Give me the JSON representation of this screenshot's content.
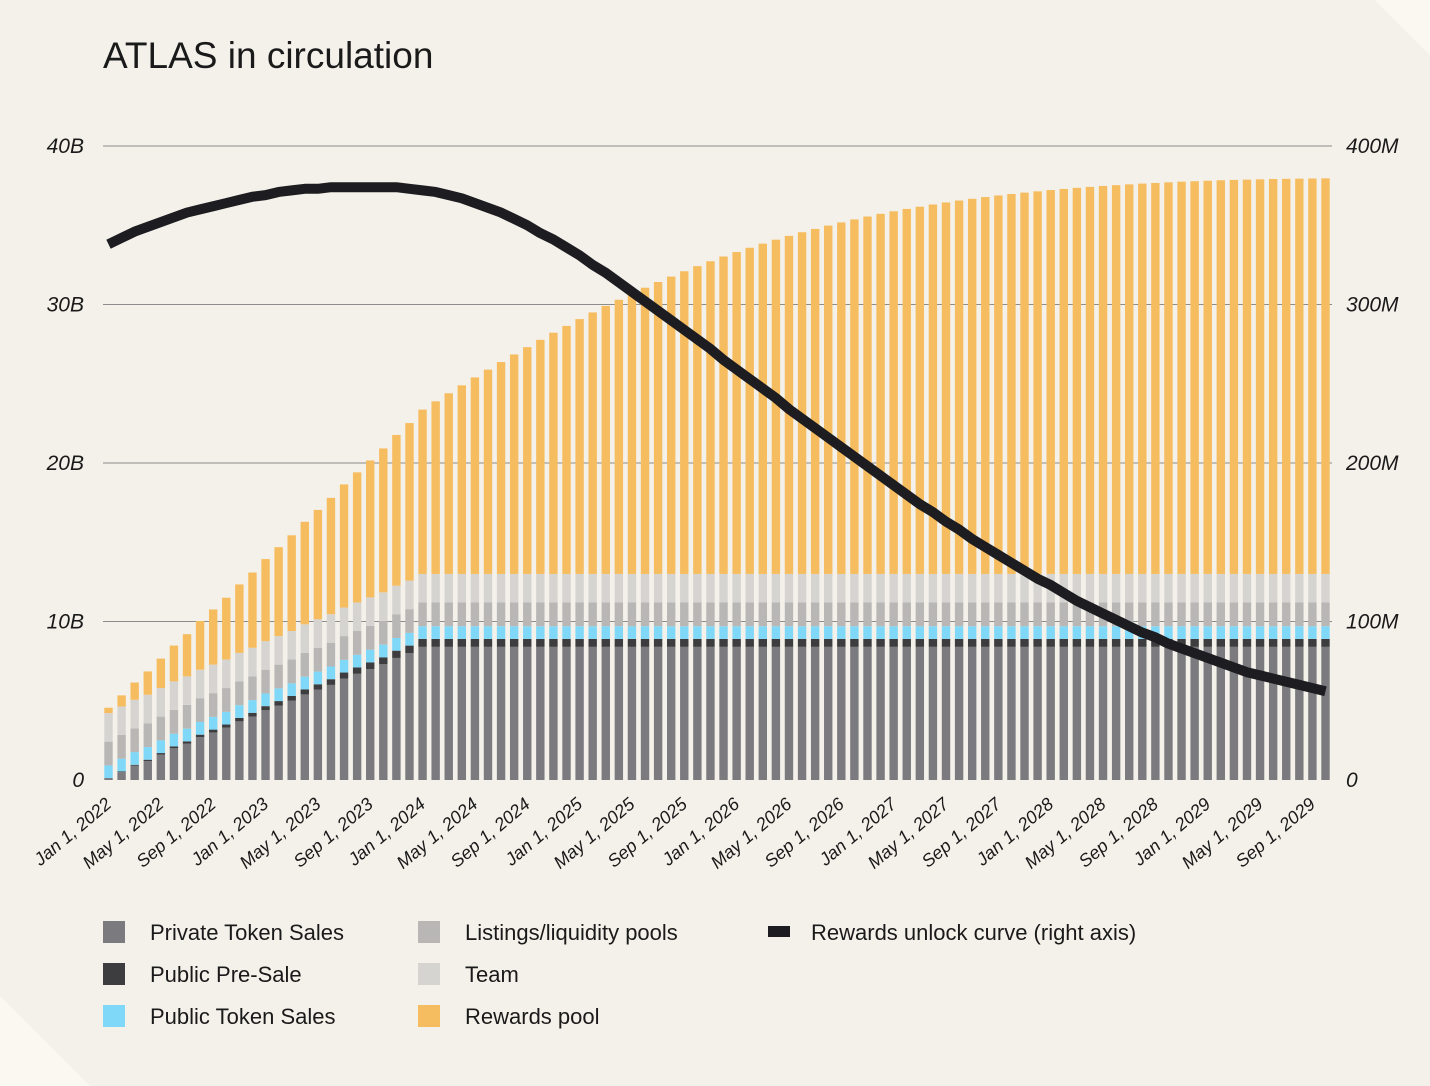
{
  "chart_data": {
    "type": "bar",
    "stacked": true,
    "title": "ATLAS in circulation",
    "left_axis": {
      "ticks": [
        "0",
        "10B",
        "20B",
        "30B",
        "40B"
      ],
      "range": [
        0,
        40000000000
      ]
    },
    "right_axis": {
      "ticks": [
        "0",
        "100M",
        "200M",
        "300M",
        "400M"
      ],
      "range": [
        0,
        400000000
      ]
    },
    "x_tick_labels": [
      "Jan 1, 2022",
      "May 1, 2022",
      "Sep 1, 2022",
      "Jan 1, 2023",
      "May 1, 2023",
      "Sep 1, 2023",
      "Jan 1, 2024",
      "May 1, 2024",
      "Sep 1, 2024",
      "Jan 1, 2025",
      "May 1, 2025",
      "Sep 1, 2025",
      "Jan 1, 2026",
      "May 1, 2026",
      "Sep 1, 2026",
      "Jan 1, 2027",
      "May 1, 2027",
      "Sep 1, 2027",
      "Jan 1, 2028",
      "May 1, 2028",
      "Sep 1, 2028",
      "Jan 1, 2029",
      "May 1, 2029",
      "Sep 1, 2029"
    ],
    "months": [
      "2022-01",
      "2022-02",
      "2022-03",
      "2022-04",
      "2022-05",
      "2022-06",
      "2022-07",
      "2022-08",
      "2022-09",
      "2022-10",
      "2022-11",
      "2022-12",
      "2023-01",
      "2023-02",
      "2023-03",
      "2023-04",
      "2023-05",
      "2023-06",
      "2023-07",
      "2023-08",
      "2023-09",
      "2023-10",
      "2023-11",
      "2023-12",
      "2024-01",
      "2024-02",
      "2024-03",
      "2024-04",
      "2024-05",
      "2024-06",
      "2024-07",
      "2024-08",
      "2024-09",
      "2024-10",
      "2024-11",
      "2024-12",
      "2025-01",
      "2025-02",
      "2025-03",
      "2025-04",
      "2025-05",
      "2025-06",
      "2025-07",
      "2025-08",
      "2025-09",
      "2025-10",
      "2025-11",
      "2025-12",
      "2026-01",
      "2026-02",
      "2026-03",
      "2026-04",
      "2026-05",
      "2026-06",
      "2026-07",
      "2026-08",
      "2026-09",
      "2026-10",
      "2026-11",
      "2026-12",
      "2027-01",
      "2027-02",
      "2027-03",
      "2027-04",
      "2027-05",
      "2027-06",
      "2027-07",
      "2027-08",
      "2027-09",
      "2027-10",
      "2027-11",
      "2027-12",
      "2028-01",
      "2028-02",
      "2028-03",
      "2028-04",
      "2028-05",
      "2028-06",
      "2028-07",
      "2028-08",
      "2028-09",
      "2028-10",
      "2028-11",
      "2028-12",
      "2029-01",
      "2029-02",
      "2029-03",
      "2029-04",
      "2029-05",
      "2029-06",
      "2029-07",
      "2029-08",
      "2029-09",
      "2029-10"
    ],
    "series": [
      {
        "name": "Private Token Sales",
        "color": "#7b7b7f",
        "axis": "left",
        "unit": "B",
        "values": [
          0.1,
          0.5,
          0.9,
          1.2,
          1.6,
          2.0,
          2.3,
          2.7,
          3.0,
          3.3,
          3.7,
          4.0,
          4.4,
          4.7,
          5.0,
          5.4,
          5.7,
          6.0,
          6.4,
          6.7,
          7.0,
          7.3,
          7.7,
          8.0,
          8.4,
          8.4,
          8.4,
          8.4,
          8.4,
          8.4,
          8.4,
          8.4,
          8.4,
          8.4,
          8.4,
          8.4,
          8.4,
          8.4,
          8.4,
          8.4,
          8.4,
          8.4,
          8.4,
          8.4,
          8.4,
          8.4,
          8.4,
          8.4,
          8.4,
          8.4,
          8.4,
          8.4,
          8.4,
          8.4,
          8.4,
          8.4,
          8.4,
          8.4,
          8.4,
          8.4,
          8.4,
          8.4,
          8.4,
          8.4,
          8.4,
          8.4,
          8.4,
          8.4,
          8.4,
          8.4,
          8.4,
          8.4,
          8.4,
          8.4,
          8.4,
          8.4,
          8.4,
          8.4,
          8.4,
          8.4,
          8.4,
          8.4,
          8.4,
          8.4,
          8.4,
          8.4,
          8.4,
          8.4,
          8.4,
          8.4,
          8.4,
          8.4,
          8.4,
          8.4
        ]
      },
      {
        "name": "Public Pre-Sale",
        "color": "#3d3d3f",
        "axis": "left",
        "unit": "B",
        "values": [
          0.02,
          0.04,
          0.06,
          0.08,
          0.1,
          0.12,
          0.14,
          0.16,
          0.18,
          0.2,
          0.22,
          0.24,
          0.26,
          0.28,
          0.3,
          0.32,
          0.34,
          0.36,
          0.38,
          0.4,
          0.42,
          0.44,
          0.46,
          0.48,
          0.5,
          0.5,
          0.5,
          0.5,
          0.5,
          0.5,
          0.5,
          0.5,
          0.5,
          0.5,
          0.5,
          0.5,
          0.5,
          0.5,
          0.5,
          0.5,
          0.5,
          0.5,
          0.5,
          0.5,
          0.5,
          0.5,
          0.5,
          0.5,
          0.5,
          0.5,
          0.5,
          0.5,
          0.5,
          0.5,
          0.5,
          0.5,
          0.5,
          0.5,
          0.5,
          0.5,
          0.5,
          0.5,
          0.5,
          0.5,
          0.5,
          0.5,
          0.5,
          0.5,
          0.5,
          0.5,
          0.5,
          0.5,
          0.5,
          0.5,
          0.5,
          0.5,
          0.5,
          0.5,
          0.5,
          0.5,
          0.5,
          0.5,
          0.5,
          0.5,
          0.5,
          0.5,
          0.5,
          0.5,
          0.5,
          0.5,
          0.5,
          0.5,
          0.5,
          0.5
        ]
      },
      {
        "name": "Public Token Sales",
        "color": "#7fd8f8",
        "axis": "left",
        "unit": "B",
        "values": [
          0.8,
          0.8,
          0.8,
          0.8,
          0.8,
          0.8,
          0.8,
          0.8,
          0.8,
          0.8,
          0.8,
          0.8,
          0.8,
          0.8,
          0.8,
          0.8,
          0.8,
          0.8,
          0.8,
          0.8,
          0.8,
          0.8,
          0.8,
          0.8,
          0.8,
          0.8,
          0.8,
          0.8,
          0.8,
          0.8,
          0.8,
          0.8,
          0.8,
          0.8,
          0.8,
          0.8,
          0.8,
          0.8,
          0.8,
          0.8,
          0.8,
          0.8,
          0.8,
          0.8,
          0.8,
          0.8,
          0.8,
          0.8,
          0.8,
          0.8,
          0.8,
          0.8,
          0.8,
          0.8,
          0.8,
          0.8,
          0.8,
          0.8,
          0.8,
          0.8,
          0.8,
          0.8,
          0.8,
          0.8,
          0.8,
          0.8,
          0.8,
          0.8,
          0.8,
          0.8,
          0.8,
          0.8,
          0.8,
          0.8,
          0.8,
          0.8,
          0.8,
          0.8,
          0.8,
          0.8,
          0.8,
          0.8,
          0.8,
          0.8,
          0.8,
          0.8,
          0.8,
          0.8,
          0.8,
          0.8,
          0.8,
          0.8,
          0.8,
          0.8
        ]
      },
      {
        "name": "Listings/liquidity pools",
        "color": "#b8b7b5",
        "axis": "left",
        "unit": "B",
        "values": [
          1.5,
          1.5,
          1.5,
          1.5,
          1.5,
          1.5,
          1.5,
          1.5,
          1.5,
          1.5,
          1.5,
          1.5,
          1.5,
          1.5,
          1.5,
          1.5,
          1.5,
          1.5,
          1.5,
          1.5,
          1.5,
          1.5,
          1.5,
          1.5,
          1.5,
          1.5,
          1.5,
          1.5,
          1.5,
          1.5,
          1.5,
          1.5,
          1.5,
          1.5,
          1.5,
          1.5,
          1.5,
          1.5,
          1.5,
          1.5,
          1.5,
          1.5,
          1.5,
          1.5,
          1.5,
          1.5,
          1.5,
          1.5,
          1.5,
          1.5,
          1.5,
          1.5,
          1.5,
          1.5,
          1.5,
          1.5,
          1.5,
          1.5,
          1.5,
          1.5,
          1.5,
          1.5,
          1.5,
          1.5,
          1.5,
          1.5,
          1.5,
          1.5,
          1.5,
          1.5,
          1.5,
          1.5,
          1.5,
          1.5,
          1.5,
          1.5,
          1.5,
          1.5,
          1.5,
          1.5,
          1.5,
          1.5,
          1.5,
          1.5,
          1.5,
          1.5,
          1.5,
          1.5,
          1.5,
          1.5,
          1.5,
          1.5,
          1.5,
          1.5
        ]
      },
      {
        "name": "Team",
        "color": "#d5d4d1",
        "axis": "left",
        "unit": "B",
        "values": [
          1.8,
          1.8,
          1.8,
          1.8,
          1.8,
          1.8,
          1.8,
          1.8,
          1.8,
          1.8,
          1.8,
          1.8,
          1.8,
          1.8,
          1.8,
          1.8,
          1.8,
          1.8,
          1.8,
          1.8,
          1.8,
          1.8,
          1.8,
          1.8,
          1.8,
          1.8,
          1.8,
          1.8,
          1.8,
          1.8,
          1.8,
          1.8,
          1.8,
          1.8,
          1.8,
          1.8,
          1.8,
          1.8,
          1.8,
          1.8,
          1.8,
          1.8,
          1.8,
          1.8,
          1.8,
          1.8,
          1.8,
          1.8,
          1.8,
          1.8,
          1.8,
          1.8,
          1.8,
          1.8,
          1.8,
          1.8,
          1.8,
          1.8,
          1.8,
          1.8,
          1.8,
          1.8,
          1.8,
          1.8,
          1.8,
          1.8,
          1.8,
          1.8,
          1.8,
          1.8,
          1.8,
          1.8,
          1.8,
          1.8,
          1.8,
          1.8,
          1.8,
          1.8,
          1.8,
          1.8,
          1.8,
          1.8,
          1.8,
          1.8,
          1.8,
          1.8,
          1.8,
          1.8,
          1.8,
          1.8,
          1.8,
          1.8,
          1.8,
          1.8
        ]
      },
      {
        "name": "Rewards pool",
        "color": "#f6bd60",
        "axis": "left",
        "unit": "B",
        "values": [
          0.34,
          0.7,
          1.09,
          1.47,
          1.86,
          2.26,
          2.66,
          3.07,
          3.48,
          3.9,
          4.32,
          4.75,
          5.18,
          5.61,
          6.04,
          6.47,
          6.9,
          7.34,
          7.77,
          8.21,
          8.64,
          9.08,
          9.51,
          9.94,
          10.37,
          10.89,
          11.4,
          11.9,
          12.4,
          12.89,
          13.37,
          13.85,
          14.31,
          14.77,
          15.22,
          15.65,
          16.08,
          16.5,
          16.91,
          17.3,
          17.69,
          18.06,
          18.42,
          18.76,
          19.1,
          19.42,
          19.73,
          20.03,
          20.31,
          20.58,
          20.84,
          21.09,
          21.33,
          21.56,
          21.77,
          21.98,
          22.18,
          22.37,
          22.55,
          22.72,
          22.88,
          23.03,
          23.17,
          23.31,
          23.44,
          23.56,
          23.67,
          23.78,
          23.88,
          23.97,
          24.06,
          24.14,
          24.22,
          24.29,
          24.36,
          24.42,
          24.48,
          24.53,
          24.58,
          24.63,
          24.67,
          24.71,
          24.75,
          24.78,
          24.81,
          24.84,
          24.86,
          24.88,
          24.9,
          24.92,
          24.93,
          24.94,
          24.95,
          24.96
        ]
      }
    ],
    "line": {
      "name": "Rewards unlock curve (right axis)",
      "color": "#1d1c20",
      "axis": "right",
      "unit": "M",
      "values": [
        338,
        342,
        346,
        349,
        352,
        355,
        358,
        360,
        362,
        364,
        366,
        368,
        369,
        371,
        372,
        373,
        373,
        374,
        374,
        374,
        374,
        374,
        374,
        373,
        372,
        371,
        369,
        367,
        364,
        361,
        358,
        354,
        350,
        345,
        341,
        336,
        331,
        325,
        320,
        314,
        308,
        302,
        296,
        290,
        284,
        278,
        272,
        265,
        259,
        253,
        247,
        241,
        234,
        228,
        222,
        216,
        210,
        204,
        198,
        192,
        186,
        180,
        174,
        169,
        163,
        158,
        152,
        147,
        142,
        137,
        132,
        127,
        123,
        118,
        113,
        109,
        105,
        101,
        97,
        93,
        90,
        86,
        83,
        80,
        77,
        74,
        71,
        68,
        66,
        64,
        62,
        60,
        58,
        56
      ]
    },
    "legend": [
      {
        "label": "Private Token Sales",
        "color": "#7b7b7f",
        "shape": "square"
      },
      {
        "label": "Public Pre-Sale",
        "color": "#3d3d3f",
        "shape": "square"
      },
      {
        "label": "Public Token Sales",
        "color": "#7fd8f8",
        "shape": "square"
      },
      {
        "label": "Listings/liquidity pools",
        "color": "#b8b7b5",
        "shape": "square"
      },
      {
        "label": "Team",
        "color": "#d5d4d1",
        "shape": "square"
      },
      {
        "label": "Rewards pool",
        "color": "#f6bd60",
        "shape": "square"
      },
      {
        "label": "Rewards unlock curve (right axis)",
        "color": "#1d1c20",
        "shape": "dash"
      }
    ],
    "legend_position": "bottom",
    "grid": true
  }
}
